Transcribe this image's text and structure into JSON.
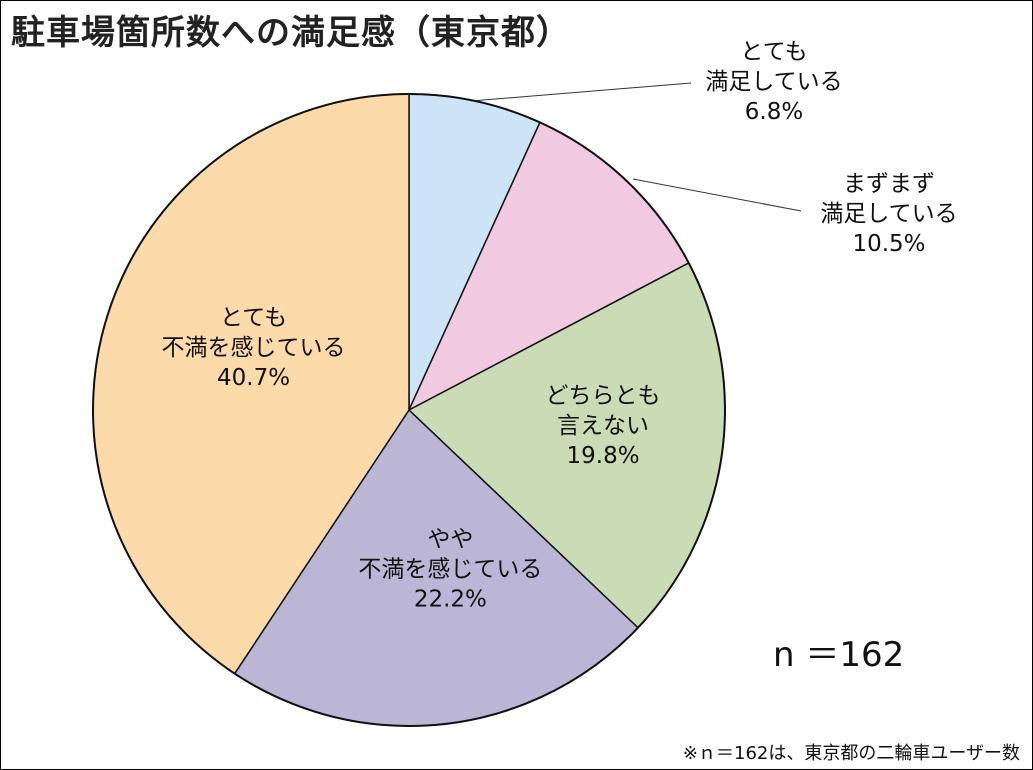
{
  "chart_data": {
    "type": "pie",
    "title": "駐車場箇所数への満足感（東京都）",
    "slices": [
      {
        "label_lines": [
          "とても",
          "満足している"
        ],
        "percent_label": "6.8%",
        "value": 6.8,
        "color": "#cce4f6"
      },
      {
        "label_lines": [
          "まずまず",
          "満足している"
        ],
        "percent_label": "10.5%",
        "value": 10.5,
        "color": "#f1c9e1"
      },
      {
        "label_lines": [
          "どちらとも",
          "言えない"
        ],
        "percent_label": "19.8%",
        "value": 19.8,
        "color": "#cadcb5"
      },
      {
        "label_lines": [
          "やや",
          "不満を感じている"
        ],
        "percent_label": "22.2%",
        "value": 22.2,
        "color": "#bbb6d6"
      },
      {
        "label_lines": [
          "とても",
          "不満を感じている"
        ],
        "percent_label": "40.7%",
        "value": 40.7,
        "color": "#fcdaaa"
      }
    ],
    "start": "12 o'clock",
    "direction": "clockwise",
    "sample_size_label": "n ＝162",
    "footnote": "※ｎ＝162は、東京都の二輪車ユーザー数"
  }
}
